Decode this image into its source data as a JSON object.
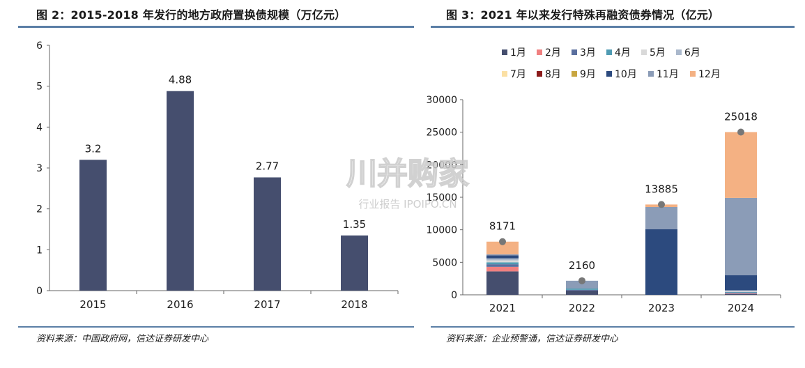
{
  "left_panel": {
    "title": "图 2：2015-2018 年发行的地方政府置换债规模（万亿元）",
    "source": "资料来源：中国政府网，信达证券研发中心"
  },
  "right_panel": {
    "title": "图 3：2021 年以来发行特殊再融资债券情况（亿元）",
    "source": "资料来源：企业预警通，信达证券研发中心"
  },
  "watermark": {
    "brand": "川并购家",
    "subtitle": "行业报告 IPOIPO.CN"
  },
  "colors": {
    "bar_left": "#454e6e",
    "rule": "#5b7fa6",
    "marker": "#777777"
  },
  "chart_data": [
    {
      "type": "bar",
      "title": "",
      "xlabel": "",
      "ylabel": "",
      "categories": [
        "2015",
        "2016",
        "2017",
        "2018"
      ],
      "values": [
        3.2,
        4.88,
        2.77,
        1.35
      ],
      "data_labels": [
        "3.2",
        "4.88",
        "2.77",
        "1.35"
      ],
      "ylim": [
        0,
        6
      ],
      "yticks": [
        "0",
        "1",
        "2",
        "3",
        "4",
        "5",
        "6"
      ],
      "grid": false,
      "legend": "none"
    },
    {
      "type": "bar",
      "stacked": true,
      "title": "",
      "xlabel": "",
      "ylabel": "",
      "categories": [
        "2021",
        "2022",
        "2023",
        "2024"
      ],
      "totals": [
        8171,
        2160,
        13885,
        25018
      ],
      "total_labels": [
        "8171",
        "2160",
        "13885",
        "25018"
      ],
      "ylim": [
        0,
        30000
      ],
      "yticks": [
        "0",
        "5000",
        "10000",
        "15000",
        "20000",
        "25000",
        "30000"
      ],
      "grid": false,
      "legend": "top",
      "series": [
        {
          "name": "1月",
          "color": "#454e6e",
          "values": [
            3600,
            650,
            0,
            120
          ]
        },
        {
          "name": "2月",
          "color": "#f08080",
          "values": [
            700,
            0,
            0,
            80
          ]
        },
        {
          "name": "3月",
          "color": "#5a6f9e",
          "values": [
            400,
            120,
            0,
            150
          ]
        },
        {
          "name": "4月",
          "color": "#4f9bb3",
          "values": [
            300,
            200,
            0,
            80
          ]
        },
        {
          "name": "5月",
          "color": "#d9d9d9",
          "values": [
            300,
            0,
            0,
            100
          ]
        },
        {
          "name": "6月",
          "color": "#aab8cc",
          "values": [
            300,
            0,
            0,
            170
          ]
        },
        {
          "name": "7月",
          "color": "#fbe0a4",
          "values": [
            0,
            0,
            0,
            0
          ]
        },
        {
          "name": "8月",
          "color": "#8b1a1a",
          "values": [
            0,
            0,
            0,
            0
          ]
        },
        {
          "name": "9月",
          "color": "#c8a640",
          "values": [
            0,
            0,
            0,
            0
          ]
        },
        {
          "name": "10月",
          "color": "#2c4a7e",
          "values": [
            450,
            0,
            10100,
            2300
          ]
        },
        {
          "name": "11月",
          "color": "#8b9cb7",
          "values": [
            170,
            1190,
            3400,
            11900
          ]
        },
        {
          "name": "12月",
          "color": "#f4b183",
          "values": [
            1951,
            0,
            385,
            10118
          ]
        }
      ]
    }
  ]
}
